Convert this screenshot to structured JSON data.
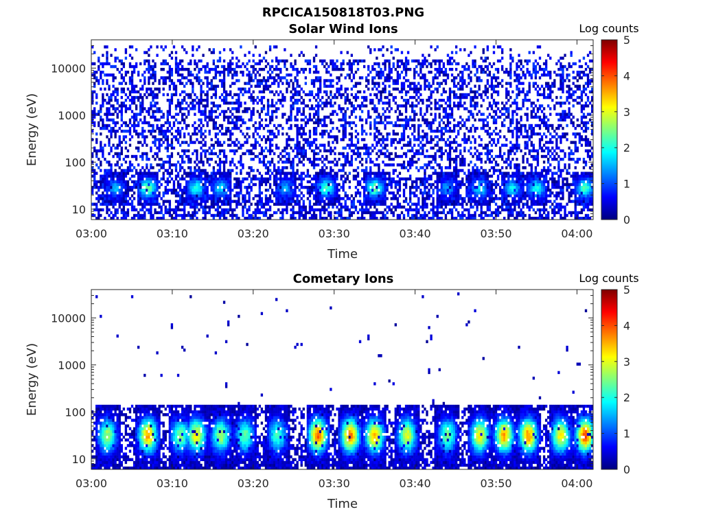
{
  "figure": {
    "title": "RPCICA150818T03.PNG"
  },
  "colorbar": {
    "label": "Log counts",
    "range": [
      0,
      5
    ],
    "ticks": [
      "0",
      "1",
      "2",
      "3",
      "4",
      "5"
    ],
    "colormap": "jet",
    "colors": [
      "#00007f",
      "#0000ff",
      "#007fff",
      "#00ffff",
      "#7fff7f",
      "#ffff00",
      "#ff7f00",
      "#ff0000",
      "#7f0000"
    ]
  },
  "chart_data": [
    {
      "type": "heatmap",
      "title": "Solar Wind Ions",
      "xlabel": "Time",
      "ylabel": "Energy (eV)",
      "x_ticks": [
        "03:00",
        "03:10",
        "03:20",
        "03:30",
        "03:40",
        "03:50",
        "04:00"
      ],
      "x_range": [
        "03:00",
        "04:02"
      ],
      "y_ticks": [
        "10",
        "100",
        "1000",
        "10000"
      ],
      "y_scale": "log",
      "ylim": [
        6,
        40000
      ],
      "z_range": [
        0,
        5
      ],
      "description_of_content": "",
      "band_times": [
        "03:03",
        "03:07",
        "03:13",
        "03:16",
        "03:24",
        "03:29",
        "03:35",
        "03:44",
        "03:48",
        "03:52",
        "03:55",
        "04:01"
      ],
      "band_peak_log_counts": [
        1.3,
        2.2,
        1.8,
        1.5,
        1.2,
        2.0,
        2.2,
        1.2,
        1.6,
        1.6,
        1.8,
        2.0
      ],
      "background_log_counts": [
        0.1,
        0.9
      ],
      "background_energy_range": [
        6,
        30000
      ]
    },
    {
      "type": "heatmap",
      "title": "Cometary Ions",
      "xlabel": "Time",
      "ylabel": "Energy (eV)",
      "x_ticks": [
        "03:00",
        "03:10",
        "03:20",
        "03:30",
        "03:40",
        "03:50",
        "04:00"
      ],
      "x_range": [
        "03:00",
        "04:02"
      ],
      "y_ticks": [
        "10",
        "100",
        "1000",
        "10000"
      ],
      "y_scale": "log",
      "ylim": [
        6,
        40000
      ],
      "z_range": [
        0,
        5
      ],
      "band_times": [
        "03:02",
        "03:07",
        "03:11",
        "03:13",
        "03:16",
        "03:19",
        "03:23",
        "03:28",
        "03:32",
        "03:35",
        "03:39",
        "03:44",
        "03:48",
        "03:51",
        "03:54",
        "03:58",
        "04:01"
      ],
      "band_peak_log_counts": [
        2.5,
        3.4,
        2.3,
        3.0,
        2.5,
        2.2,
        2.0,
        3.7,
        3.6,
        3.3,
        2.8,
        2.3,
        3.0,
        3.4,
        3.5,
        3.0,
        3.8
      ],
      "background_energy_range": [
        6,
        150
      ]
    }
  ]
}
